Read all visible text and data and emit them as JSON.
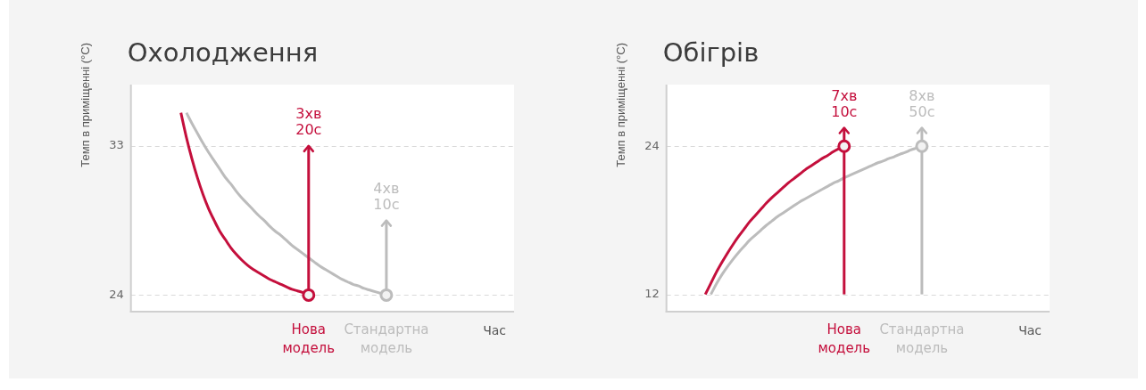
{
  "chart_data": [
    {
      "type": "line",
      "title": "Охолодження",
      "xlabel": "Час",
      "ylabel": "Темп в приміщенні (°C)",
      "categories": [
        null,
        null,
        null,
        null,
        null,
        null,
        null,
        null,
        null,
        null,
        null,
        null,
        null,
        null,
        null,
        null,
        null,
        null,
        null,
        null,
        null,
        null,
        null,
        null,
        null,
        null,
        null,
        null,
        null,
        null,
        null,
        null,
        "Нова модель",
        null,
        null,
        null,
        null,
        null,
        null,
        null,
        null,
        null,
        null,
        null,
        null,
        null,
        "Стандартна модель",
        null,
        null,
        null,
        null,
        null,
        null,
        null,
        null,
        null,
        null,
        null,
        null,
        null,
        null,
        null,
        null,
        null,
        null,
        null,
        null,
        null,
        null,
        null
      ],
      "series": [
        {
          "color": "#c40f3c",
          "values": [
            null,
            null,
            null,
            null,
            null,
            null,
            null,
            null,
            null,
            35.0,
            33.5,
            32.2,
            31.05,
            30.05,
            29.2,
            28.5,
            27.85,
            27.35,
            26.85,
            26.45,
            26.1,
            25.8,
            25.55,
            25.35,
            25.15,
            24.95,
            24.8,
            24.65,
            24.5,
            24.35,
            24.25,
            24.15,
            24.0,
            null,
            null,
            null,
            null,
            null,
            null,
            null,
            null,
            null,
            null,
            null,
            null,
            null,
            null,
            null,
            null,
            null,
            null,
            null,
            null,
            null,
            null,
            null,
            null,
            null,
            null,
            null,
            null,
            null,
            null,
            null,
            null,
            null,
            null,
            null,
            null,
            null
          ]
        },
        {
          "color": "#bcbcbc",
          "values": [
            null,
            null,
            null,
            null,
            null,
            null,
            null,
            null,
            null,
            null,
            35.0,
            34.35,
            33.75,
            33.15,
            32.6,
            32.1,
            31.6,
            31.1,
            30.7,
            30.25,
            29.85,
            29.5,
            29.15,
            28.8,
            28.5,
            28.15,
            27.85,
            27.6,
            27.3,
            27.0,
            26.75,
            26.5,
            26.25,
            26.0,
            25.75,
            25.55,
            25.35,
            25.15,
            24.95,
            24.8,
            24.65,
            24.55,
            24.4,
            24.3,
            24.2,
            24.1,
            24.0,
            null,
            null,
            null,
            null,
            null,
            null,
            null,
            null,
            null,
            null,
            null,
            null,
            null,
            null,
            null,
            null,
            null,
            null,
            null,
            null,
            null,
            null,
            null
          ]
        },
        {
          "type": "line",
          "color": "#c40f3c",
          "x": [
            "Нова модель",
            "Нова модель"
          ],
          "values": [
            24,
            33
          ]
        },
        {
          "type": "line",
          "color": "#bcbcbc",
          "x": [
            "Стандартна модель",
            "Стандартна модель"
          ],
          "values": [
            24,
            28.5
          ]
        },
        {
          "type": "scatter",
          "color": "#c40f3c",
          "marker": "circle",
          "x": [
            "Нова модель"
          ],
          "values": [
            24
          ]
        },
        {
          "type": "scatter",
          "color": "#bcbcbc",
          "marker": "circle",
          "x": [
            "Стандартна модель"
          ],
          "values": [
            24
          ]
        }
      ],
      "ylim": [
        23,
        36.7
      ],
      "yticks": [
        24,
        33
      ],
      "grid": "y",
      "annotations": [
        {
          "text": "3хв",
          "x": "Нова модель",
          "y": 33
        },
        {
          "text": "20с",
          "x": "Нова модель",
          "y": 33
        },
        {
          "text": "4хв",
          "x": "Стандартна модель",
          "y": 28.5
        },
        {
          "text": "10с",
          "x": "Стандартна модель",
          "y": 28.5
        }
      ]
    },
    {
      "type": "line",
      "title": "Обігрів",
      "xlabel": "Час",
      "ylabel": "Темп в приміщенні (°C)",
      "categories": [
        null,
        null,
        null,
        null,
        null,
        null,
        null,
        null,
        null,
        null,
        null,
        null,
        null,
        null,
        null,
        null,
        null,
        null,
        null,
        null,
        null,
        null,
        null,
        null,
        null,
        null,
        null,
        null,
        null,
        null,
        null,
        null,
        "Нова модель",
        null,
        null,
        null,
        null,
        null,
        null,
        null,
        null,
        null,
        null,
        null,
        null,
        null,
        "Стандартна модель",
        null,
        null,
        null,
        null,
        null,
        null,
        null,
        null,
        null,
        null,
        null,
        null,
        null,
        null,
        null,
        null,
        null,
        null,
        null,
        null,
        null,
        null,
        null
      ],
      "series": [
        {
          "color": "#c40f3c",
          "values": [
            null,
            null,
            null,
            null,
            null,
            null,
            null,
            12.0,
            12.9,
            13.8,
            14.6,
            15.35,
            16.05,
            16.7,
            17.3,
            17.9,
            18.4,
            18.9,
            19.4,
            19.85,
            20.25,
            20.65,
            21.05,
            21.4,
            21.75,
            22.1,
            22.4,
            22.7,
            23.0,
            23.25,
            23.55,
            23.8,
            24.0,
            null,
            null,
            null,
            null,
            null,
            null,
            null,
            null,
            null,
            null,
            null,
            null,
            null,
            null,
            null,
            null,
            null,
            null,
            null,
            null,
            null,
            null,
            null,
            null,
            null,
            null,
            null,
            null,
            null,
            null,
            null,
            null,
            null,
            null,
            null,
            null,
            null
          ]
        },
        {
          "color": "#bcbcbc",
          "values": [
            null,
            null,
            null,
            null,
            null,
            null,
            null,
            null,
            12.0,
            12.85,
            13.6,
            14.25,
            14.85,
            15.4,
            15.9,
            16.4,
            16.8,
            17.2,
            17.6,
            17.95,
            18.3,
            18.6,
            18.9,
            19.2,
            19.5,
            19.75,
            20.0,
            20.25,
            20.5,
            20.75,
            21.0,
            21.2,
            21.45,
            21.65,
            21.85,
            22.05,
            22.25,
            22.45,
            22.65,
            22.8,
            23.0,
            23.15,
            23.35,
            23.5,
            23.7,
            23.85,
            24.0,
            null,
            null,
            null,
            null,
            null,
            null,
            null,
            null,
            null,
            null,
            null,
            null,
            null,
            null,
            null,
            null,
            null,
            null,
            null,
            null,
            null,
            null,
            null
          ]
        },
        {
          "type": "line",
          "color": "#c40f3c",
          "x": [
            "Нова модель",
            "Нова модель"
          ],
          "values": [
            12,
            25.5
          ]
        },
        {
          "type": "line",
          "color": "#bcbcbc",
          "x": [
            "Стандартна модель",
            "Стандартна модель"
          ],
          "values": [
            12,
            25.5
          ]
        },
        {
          "type": "scatter",
          "color": "#c40f3c",
          "marker": "circle",
          "x": [
            "Нова модель"
          ],
          "values": [
            24
          ]
        },
        {
          "type": "scatter",
          "color": "#bcbcbc",
          "marker": "circle",
          "x": [
            "Стандартна модель"
          ],
          "values": [
            24
          ]
        }
      ],
      "ylim": [
        10.6,
        29
      ],
      "yticks": [
        12,
        24
      ],
      "grid": "y",
      "annotations": [
        {
          "text": "7хв",
          "x": "Нова модель",
          "y": 25.5
        },
        {
          "text": "10с",
          "x": "Нова модель",
          "y": 25.5
        },
        {
          "text": "8хв",
          "x": "Стандартна модель",
          "y": 25.5
        },
        {
          "text": "50с",
          "x": "Стандартна модель",
          "y": 25.5
        }
      ]
    }
  ]
}
